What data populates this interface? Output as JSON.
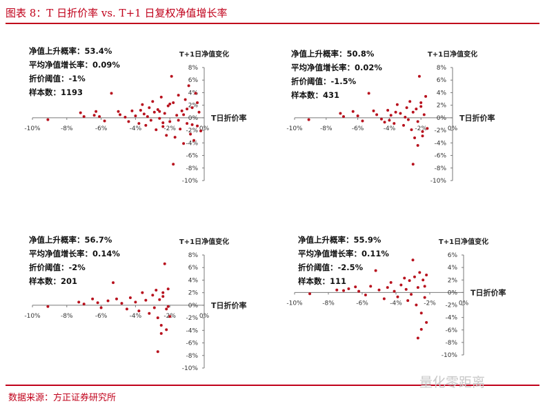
{
  "header": {
    "title": "图表 8：T 日折价率  vs.  T+1 日复权净值增长率"
  },
  "footer": {
    "source": "数据来源：方正证券研究所"
  },
  "watermark": {
    "text": "量化零距离"
  },
  "colors": {
    "accent": "#c0001a",
    "point": "#b8121e"
  },
  "chart_data": [
    {
      "type": "scatter",
      "xlabel": "T日折价率",
      "ylabel": "T+1日净值变化",
      "xlim": [
        -10,
        0
      ],
      "ylim": [
        -10,
        8
      ],
      "xticks": [
        "-10%",
        "-8%",
        "-6%",
        "-4%",
        "-2%",
        "0%"
      ],
      "yticks": [
        "8%",
        "6%",
        "4%",
        "2%",
        "0%",
        "-2%",
        "-4%",
        "-6%",
        "-8%",
        "-10%"
      ],
      "stats": [
        "净值上升概率：53.4%",
        "平均净值增长率：0.09%",
        "折价阈值：-1%",
        "样本数：1193"
      ],
      "points": [
        [
          -9.1,
          -0.3
        ],
        [
          -7.2,
          0.8
        ],
        [
          -7.0,
          0.2
        ],
        [
          -6.4,
          0.4
        ],
        [
          -6.3,
          1.0
        ],
        [
          -6.1,
          0.2
        ],
        [
          -5.8,
          -0.5
        ],
        [
          -5.4,
          3.9
        ],
        [
          -5.0,
          1.0
        ],
        [
          -4.9,
          0.5
        ],
        [
          -4.6,
          0.1
        ],
        [
          -4.4,
          -0.6
        ],
        [
          -4.2,
          1.1
        ],
        [
          -4.0,
          0.3
        ],
        [
          -3.8,
          -0.9
        ],
        [
          -3.6,
          2.1
        ],
        [
          -3.5,
          0.6
        ],
        [
          -3.4,
          -1.2
        ],
        [
          -3.2,
          1.6
        ],
        [
          -3.1,
          -0.4
        ],
        [
          -3.0,
          2.6
        ],
        [
          -2.9,
          0.9
        ],
        [
          -2.8,
          -1.9
        ],
        [
          -2.7,
          1.3
        ],
        [
          -2.6,
          -0.1
        ],
        [
          -2.5,
          3.3
        ],
        [
          -2.4,
          -1.4
        ],
        [
          -2.3,
          0.7
        ],
        [
          -2.2,
          -2.8
        ],
        [
          -2.1,
          1.9
        ],
        [
          -2.0,
          -0.6
        ],
        [
          -1.9,
          6.6
        ],
        [
          -1.8,
          2.4
        ],
        [
          -1.7,
          -3.1
        ],
        [
          -1.6,
          0.4
        ],
        [
          -1.5,
          3.6
        ],
        [
          -1.4,
          -1.8
        ],
        [
          -1.3,
          1.1
        ],
        [
          -1.2,
          -4.1
        ],
        [
          -1.1,
          2.9
        ],
        [
          -1.0,
          -0.9
        ],
        [
          -0.9,
          5.1
        ],
        [
          -0.8,
          -2.6
        ],
        [
          -0.7,
          1.6
        ],
        [
          -0.6,
          -3.6
        ],
        [
          -0.5,
          3.9
        ],
        [
          -0.4,
          -1.3
        ],
        [
          -0.3,
          0.9
        ],
        [
          -0.2,
          -2.1
        ],
        [
          -1.8,
          -7.4
        ],
        [
          -2.6,
          1.0
        ],
        [
          -3.3,
          0.2
        ],
        [
          -2.0,
          2.2
        ],
        [
          -1.5,
          -0.4
        ],
        [
          -1.0,
          1.4
        ],
        [
          -0.7,
          -1.1
        ],
        [
          -0.4,
          2.4
        ],
        [
          -1.2,
          0.5
        ],
        [
          -2.4,
          -0.8
        ],
        [
          -3.7,
          1.2
        ]
      ]
    },
    {
      "type": "scatter",
      "xlabel": "T日折价率",
      "ylabel": "T+1日净值变化",
      "xlim": [
        -10,
        0
      ],
      "ylim": [
        -10,
        8
      ],
      "xticks": [
        "-10%",
        "-8%",
        "-6%",
        "-4%",
        "-2%",
        "0%"
      ],
      "yticks": [
        "8%",
        "6%",
        "4%",
        "2%",
        "0%",
        "-2%",
        "-4%",
        "-6%",
        "-8%",
        "-10%"
      ],
      "stats": [
        "净值上升概率：50.8%",
        "平均净值增长率：0.02%",
        "折价阈值：-1.5%",
        "样本数：431"
      ],
      "points": [
        [
          -9.1,
          -0.3
        ],
        [
          -7.1,
          0.7
        ],
        [
          -6.9,
          0.2
        ],
        [
          -6.3,
          1.0
        ],
        [
          -6.0,
          0.3
        ],
        [
          -5.7,
          -0.5
        ],
        [
          -5.3,
          3.9
        ],
        [
          -5.0,
          1.1
        ],
        [
          -4.8,
          0.5
        ],
        [
          -4.5,
          -0.2
        ],
        [
          -4.3,
          -0.7
        ],
        [
          -4.1,
          1.2
        ],
        [
          -3.9,
          0.4
        ],
        [
          -3.7,
          -0.9
        ],
        [
          -3.5,
          2.1
        ],
        [
          -3.3,
          0.7
        ],
        [
          -3.1,
          -1.2
        ],
        [
          -2.9,
          1.6
        ],
        [
          -2.8,
          -0.3
        ],
        [
          -2.7,
          2.6
        ],
        [
          -2.6,
          -1.9
        ],
        [
          -2.5,
          0.9
        ],
        [
          -2.4,
          -3.2
        ],
        [
          -2.3,
          1.4
        ],
        [
          -2.2,
          -0.6
        ],
        [
          -2.1,
          6.6
        ],
        [
          -2.0,
          2.4
        ],
        [
          -1.9,
          -2.9
        ],
        [
          -1.8,
          0.5
        ],
        [
          -1.7,
          3.4
        ],
        [
          -1.6,
          -1.7
        ],
        [
          -2.5,
          -7.4
        ],
        [
          -2.2,
          -4.4
        ],
        [
          -1.9,
          -2.2
        ],
        [
          -2.0,
          1.8
        ],
        [
          -3.0,
          0.1
        ],
        [
          -3.6,
          0.9
        ],
        [
          -4.0,
          -0.4
        ]
      ]
    },
    {
      "type": "scatter",
      "xlabel": "T日折价率",
      "ylabel": "T+1日净值变化",
      "xlim": [
        -10,
        0
      ],
      "ylim": [
        -10,
        8
      ],
      "xticks": [
        "-10%",
        "-8%",
        "-6%",
        "-4%",
        "-2%",
        "0%"
      ],
      "yticks": [
        "8%",
        "6%",
        "4%",
        "2%",
        "0%",
        "-2%",
        "-4%",
        "-6%",
        "-8%",
        "-10%"
      ],
      "stats": [
        "净值上升概率：56.7%",
        "平均净值增长率：0.14%",
        "折价阈值：-2%",
        "样本数：201"
      ],
      "points": [
        [
          -9.1,
          -0.2
        ],
        [
          -7.3,
          0.5
        ],
        [
          -7.0,
          0.2
        ],
        [
          -6.5,
          1.0
        ],
        [
          -6.2,
          0.4
        ],
        [
          -6.0,
          -0.4
        ],
        [
          -5.6,
          0.7
        ],
        [
          -5.3,
          3.6
        ],
        [
          -5.1,
          1.0
        ],
        [
          -4.8,
          0.3
        ],
        [
          -4.5,
          -0.6
        ],
        [
          -4.3,
          1.2
        ],
        [
          -4.0,
          0.5
        ],
        [
          -3.8,
          -0.9
        ],
        [
          -3.6,
          2.0
        ],
        [
          -3.4,
          0.8
        ],
        [
          -3.2,
          -1.3
        ],
        [
          -3.0,
          1.6
        ],
        [
          -2.9,
          -0.4
        ],
        [
          -2.8,
          2.4
        ],
        [
          -2.7,
          -2.0
        ],
        [
          -2.6,
          0.9
        ],
        [
          -2.5,
          -3.2
        ],
        [
          -2.4,
          1.4
        ],
        [
          -2.3,
          6.6
        ],
        [
          -2.2,
          -0.6
        ],
        [
          -2.1,
          2.6
        ],
        [
          -2.0,
          -1.8
        ],
        [
          -2.7,
          -7.4
        ],
        [
          -2.5,
          -4.5
        ],
        [
          -2.2,
          -3.9
        ],
        [
          -2.4,
          2.0
        ],
        [
          -2.1,
          -0.2
        ]
      ]
    },
    {
      "type": "scatter",
      "xlabel": "T日折价率",
      "ylabel": "T+1日净值变化",
      "xlim": [
        -10,
        0
      ],
      "ylim": [
        -10,
        6
      ],
      "xticks": [
        "-10%",
        "-8%",
        "-6%",
        "-4%",
        "-2%",
        "0%"
      ],
      "yticks": [
        "6%",
        "4%",
        "2%",
        "0%",
        "-2%",
        "-4%",
        "-6%",
        "-8%",
        "-10%"
      ],
      "stats": [
        "净值上升概率：55.9%",
        "平均净值增长率：0.11%",
        "折价阈值：-2.5%",
        "样本数：111"
      ],
      "points": [
        [
          -9.1,
          -0.2
        ],
        [
          -7.5,
          0.4
        ],
        [
          -7.1,
          0.3
        ],
        [
          -6.8,
          0.6
        ],
        [
          -6.4,
          0.9
        ],
        [
          -6.2,
          0.2
        ],
        [
          -5.8,
          -0.4
        ],
        [
          -5.5,
          1.0
        ],
        [
          -5.2,
          3.5
        ],
        [
          -5.0,
          0.4
        ],
        [
          -4.7,
          -1.0
        ],
        [
          -4.5,
          0.8
        ],
        [
          -4.3,
          1.6
        ],
        [
          -4.1,
          0.2
        ],
        [
          -3.9,
          -0.7
        ],
        [
          -3.7,
          1.2
        ],
        [
          -3.5,
          2.3
        ],
        [
          -3.4,
          0.5
        ],
        [
          -3.3,
          -1.3
        ],
        [
          -3.2,
          1.9
        ],
        [
          -3.1,
          -0.3
        ],
        [
          -3.0,
          5.2
        ],
        [
          -2.9,
          2.5
        ],
        [
          -2.8,
          -2.0
        ],
        [
          -2.7,
          0.8
        ],
        [
          -2.6,
          3.2
        ],
        [
          -2.5,
          -3.3
        ],
        [
          -2.4,
          2.0
        ],
        [
          -2.3,
          -0.8
        ],
        [
          -2.2,
          -4.8
        ],
        [
          -2.2,
          2.8
        ],
        [
          -2.7,
          -7.3
        ],
        [
          -2.5,
          -5.9
        ],
        [
          -2.3,
          1.0
        ]
      ]
    }
  ]
}
